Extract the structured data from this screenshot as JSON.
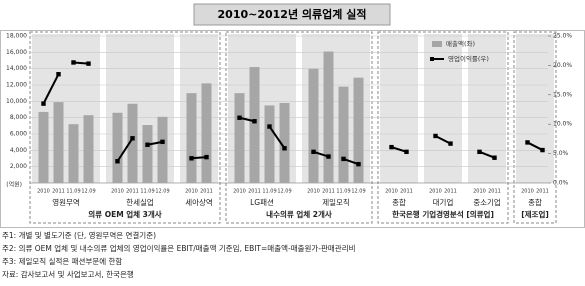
{
  "chart_data": {
    "type": "bar-line",
    "title": "2010~2012년 의류업계 실적",
    "ylabel": "(억원)",
    "ylim": [
      0,
      18000
    ],
    "yticks": [
      {
        "value": 2000,
        "label": "2,000"
      },
      {
        "value": 4000,
        "label": "4,000"
      },
      {
        "value": 6000,
        "label": "6,000"
      },
      {
        "value": 8000,
        "label": "8,000"
      },
      {
        "value": 10000,
        "label": "10,000"
      },
      {
        "value": 12000,
        "label": "12,000"
      },
      {
        "value": 14000,
        "label": "14,000"
      },
      {
        "value": 16000,
        "label": "16,000"
      },
      {
        "value": 18000,
        "label": "18,000"
      }
    ],
    "y2lim": [
      0,
      25
    ],
    "y2ticks": [
      {
        "value": 0,
        "label": "0.0%"
      },
      {
        "value": 5,
        "label": "5.0%"
      },
      {
        "value": 10,
        "label": "10.0%"
      },
      {
        "value": 15,
        "label": "15.0%"
      },
      {
        "value": 20,
        "label": "20.0%"
      },
      {
        "value": 25,
        "label": "25.0%"
      }
    ],
    "grid": true,
    "bar_color": "#a6a6a6",
    "line_color": "#000000",
    "legend": [
      "매출액(좌)",
      "영업이익률(우)"
    ],
    "groups": [
      {
        "name": "의류 OEM 업체 3개사",
        "panels": [
          {
            "name": "영원무역",
            "categories": [
              "2010",
              "2011",
              "11.09",
              "12.09"
            ],
            "sales": [
              8700,
              9900,
              7200,
              8300
            ],
            "margin": [
              13.5,
              18.5,
              20.5,
              20.3
            ]
          },
          {
            "name": "한세실업",
            "categories": [
              "2010",
              "2011",
              "11.09",
              "12.09"
            ],
            "sales": [
              8600,
              9700,
              7100,
              8100
            ],
            "margin": [
              3.7,
              7.6,
              6.5,
              7.0
            ]
          },
          {
            "name": "세아상역",
            "categories": [
              "2010",
              "2011"
            ],
            "sales": [
              11000,
              12200
            ],
            "margin": [
              4.2,
              4.4
            ]
          }
        ]
      },
      {
        "name": "내수의류 업체 2개사",
        "panels": [
          {
            "name": "LG패션",
            "categories": [
              "2010",
              "2011",
              "11.09",
              "12.09"
            ],
            "sales": [
              11000,
              14200,
              9500,
              9800
            ],
            "margin": [
              11.1,
              10.5,
              9.6,
              5.9
            ]
          },
          {
            "name": "제일모직",
            "categories": [
              "2010",
              "2011",
              "11.09",
              "12.09"
            ],
            "sales": [
              14000,
              16100,
              11800,
              12900
            ],
            "margin": [
              5.3,
              4.5,
              4.1,
              3.2
            ]
          }
        ]
      },
      {
        "name": "한국은행 기업경영분석 [의류업]",
        "panels": [
          {
            "name": "종합",
            "categories": [
              "2010",
              "2011"
            ],
            "margin": [
              6.1,
              5.3
            ]
          },
          {
            "name": "대기업",
            "categories": [
              "2010",
              "2011"
            ],
            "margin": [
              8.0,
              6.7
            ]
          },
          {
            "name": "중소기업",
            "categories": [
              "2010",
              "2011"
            ],
            "margin": [
              5.3,
              4.3
            ]
          }
        ]
      },
      {
        "name": "[제조업]",
        "panels": [
          {
            "name": "종합",
            "categories": [
              "2010",
              "2011"
            ],
            "margin": [
              6.9,
              5.6
            ]
          }
        ]
      }
    ],
    "notes": [
      "주1: 개별 및 별도기준 (단, 영원무역은 연결기준)",
      "주2: 의류 OEM 업체 및 내수의류 업체의 영업이익률은 EBIT/매출액 기준임, EBIT=매출액-매출원가-판매관리비",
      "주3: 제일모직 실적은 패션부문에 한함",
      "자료: 감사보고서 및 사업보고서, 한국은행"
    ]
  }
}
